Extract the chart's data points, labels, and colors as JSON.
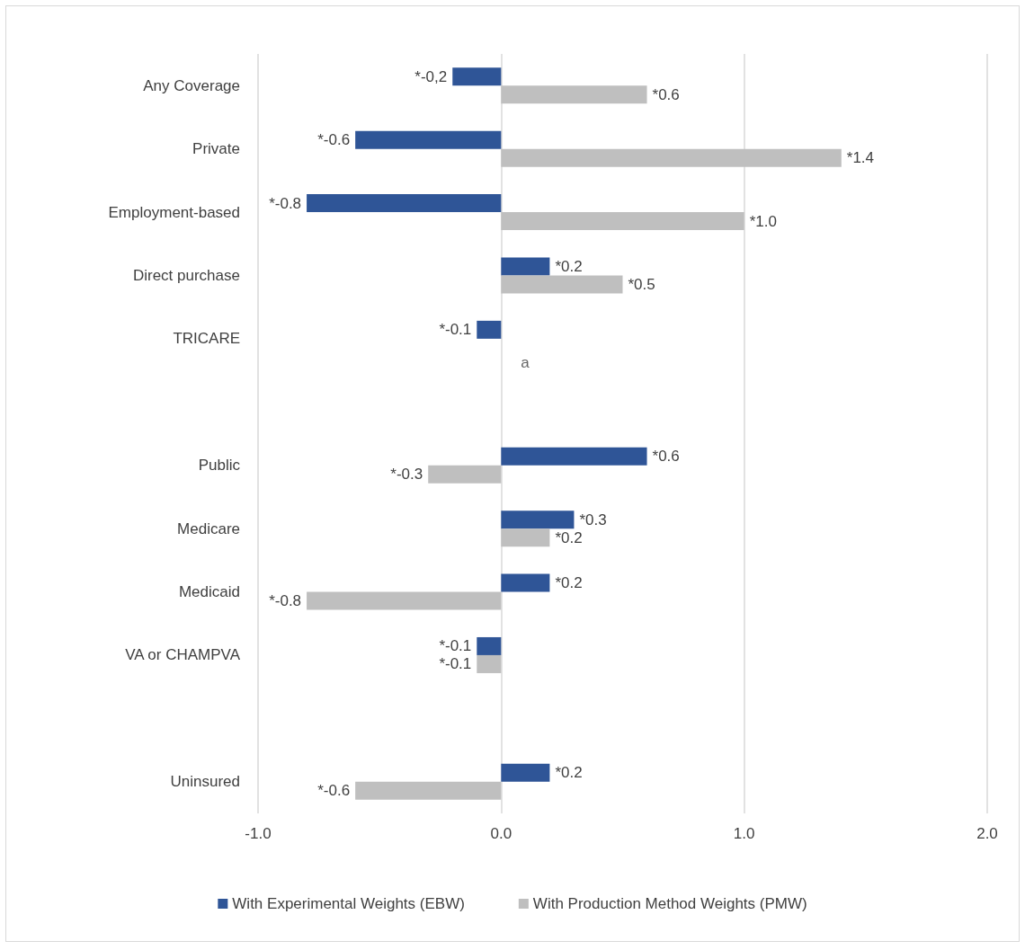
{
  "chart_data": {
    "type": "bar",
    "orientation": "horizontal",
    "categories": [
      "Any Coverage",
      "Private",
      "Employment-based",
      "Direct purchase",
      "TRICARE",
      null,
      "Public",
      "Medicare",
      "Medicaid",
      "VA or CHAMPVA",
      null,
      "Uninsured"
    ],
    "series": [
      {
        "name": "With Experimental Weights (EBW)",
        "color": "#2f5597",
        "values": [
          -0.2,
          -0.6,
          -0.8,
          0.2,
          -0.1,
          null,
          0.6,
          0.3,
          0.2,
          -0.1,
          null,
          0.2
        ],
        "value_labels": [
          "*-0,2",
          "*-0.6",
          "*-0.8",
          "*0.2",
          "*-0.1",
          null,
          "*0.6",
          "*0.3",
          "*0.2",
          "*-0.1",
          null,
          "*0.2"
        ]
      },
      {
        "name": "With Production Method Weights (PMW)",
        "color": "#bfbfbf",
        "values": [
          0.6,
          1.4,
          1.0,
          0.5,
          null,
          null,
          -0.3,
          0.2,
          -0.8,
          -0.1,
          null,
          -0.6
        ],
        "value_labels": [
          "*0.6",
          "*1.4",
          "*1.0",
          "*0.5",
          null,
          null,
          "*-0.3",
          "*0.2",
          "*-0.8",
          "*-0.1",
          null,
          "*-0.6"
        ]
      }
    ],
    "annotations": [
      {
        "text": "a",
        "x": 0,
        "y": "TRICARE"
      }
    ],
    "xlim": [
      -1,
      2
    ],
    "xticks": [
      {
        "value": -1,
        "label": "-1.0"
      },
      {
        "value": 0,
        "label": "0.0"
      },
      {
        "value": 1,
        "label": "1.0"
      },
      {
        "value": 2,
        "label": "2.0"
      }
    ],
    "grid": "x",
    "legend": "bottom"
  }
}
